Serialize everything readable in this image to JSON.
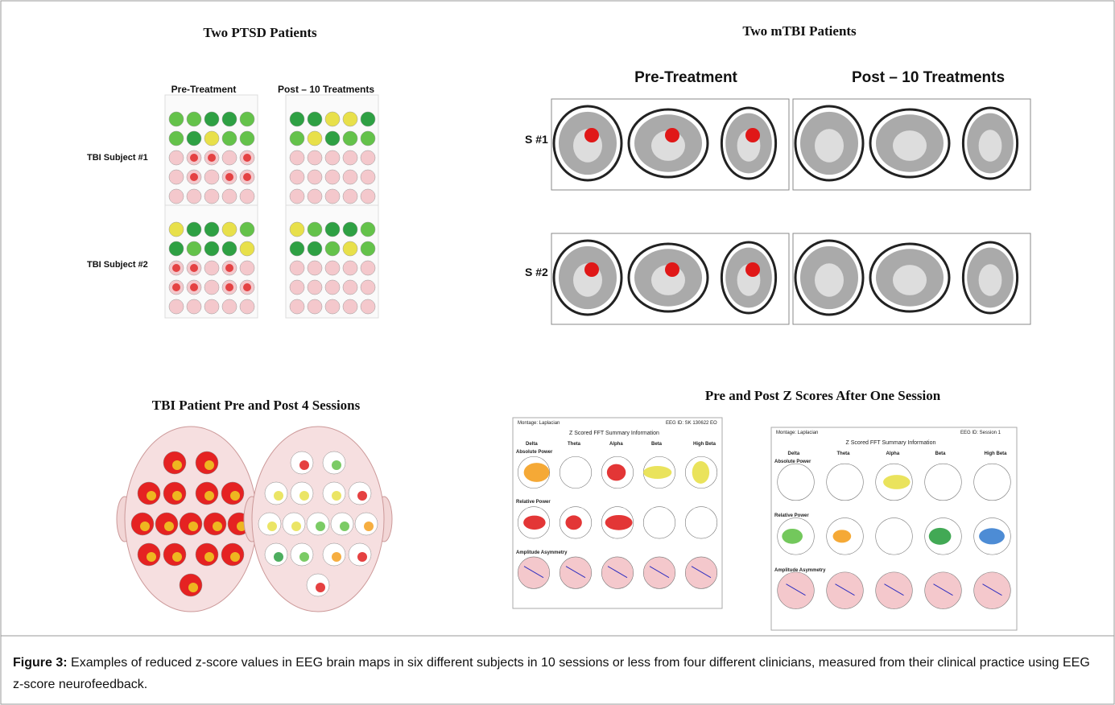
{
  "panels": [
    {
      "title": "Two PTSD Patients",
      "columns": [
        "Pre-Treatment",
        "Post – 10 Treatments"
      ],
      "rows": [
        "TBI Subject #1",
        "TBI Subject #2"
      ]
    },
    {
      "title": "Two mTBI Patients",
      "columns": [
        "Pre-Treatment",
        "Post – 10 Treatments"
      ],
      "rows": [
        "S #1",
        "S #2"
      ]
    },
    {
      "title": "TBI Patient Pre and Post 4 Sessions"
    },
    {
      "title": "Pre and Post Z Scores After One Session",
      "maps": [
        {
          "montage": "Montage: Laplacian",
          "eeg_id": "EEG ID: SK 130622 EO",
          "heading": "Z Scored FFT Summary Information"
        },
        {
          "montage": "Montage: Laplacian",
          "eeg_id": "EEG ID: Session 1",
          "heading": "Z Scored FFT Summary Information"
        }
      ],
      "bands": [
        "Delta",
        "Theta",
        "Alpha",
        "Beta",
        "High Beta"
      ],
      "measures": [
        "Absolute Power",
        "Relative Power",
        "Amplitude Asymmetry"
      ]
    }
  ],
  "caption": {
    "label": "Figure 3:",
    "text": "Examples of reduced z-score values in EEG brain maps in six different subjects in 10 sessions or less from four different clinicians, measured from their clinical practice using EEG z-score neurofeedback."
  }
}
